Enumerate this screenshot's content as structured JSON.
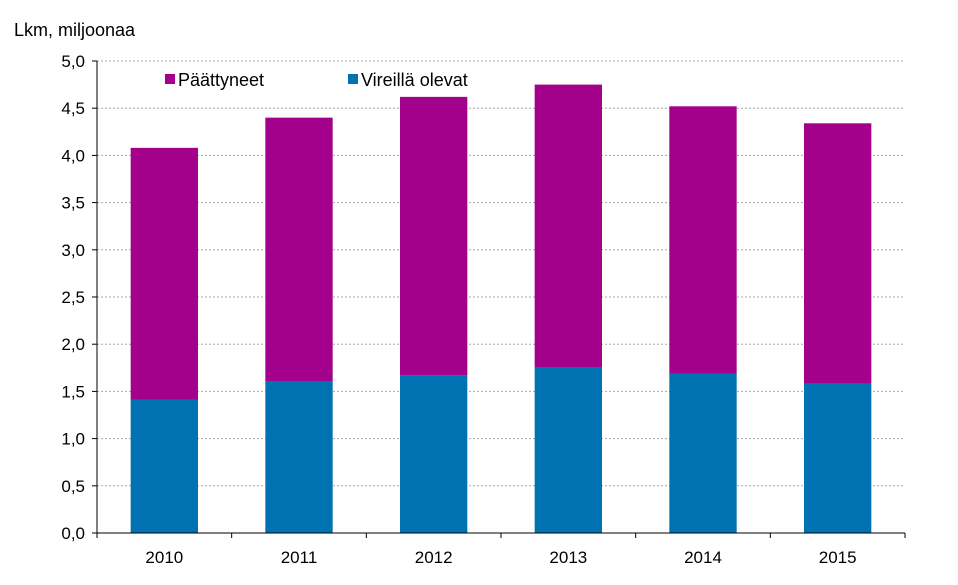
{
  "chart_data": {
    "type": "bar",
    "stacked": true,
    "categories": [
      "2010",
      "2011",
      "2012",
      "2013",
      "2014",
      "2015"
    ],
    "series": [
      {
        "name": "Vireillä olevat",
        "color": "#0072b2",
        "values": [
          1.41,
          1.61,
          1.67,
          1.75,
          1.69,
          1.58
        ]
      },
      {
        "name": "Päättyneet",
        "color": "#a3008b",
        "values": [
          2.67,
          2.79,
          2.95,
          3.0,
          2.83,
          2.76
        ]
      }
    ],
    "legend_order": [
      "Päättyneet",
      "Vireillä olevat"
    ],
    "ylabel": "Lkm, miljoonaa",
    "xlabel": "",
    "ylim": [
      0,
      5.0
    ],
    "yticks": [
      "0,0",
      "0,5",
      "1,0",
      "1,5",
      "2,0",
      "2,5",
      "3,0",
      "3,5",
      "4,0",
      "4,5",
      "5,0"
    ],
    "grid": true,
    "legend_position": "top-left"
  }
}
